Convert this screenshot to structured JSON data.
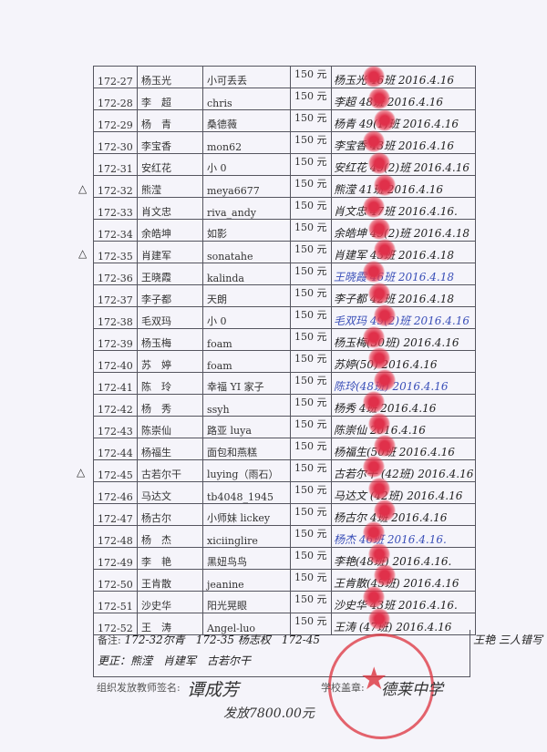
{
  "amount_label": "150 元",
  "rows": [
    {
      "id": "172-27",
      "name": "杨玉光",
      "nick": "小可丢丢",
      "sign": "杨玉光 46班 2016.4.16",
      "blue": false
    },
    {
      "id": "172-28",
      "name": "李　超",
      "nick": "chris",
      "sign": "李超 48班 2016.4.16",
      "blue": false
    },
    {
      "id": "172-29",
      "name": "杨　青",
      "nick": "桑德薇",
      "sign": "杨青 49(1)班 2016.4.16",
      "blue": false
    },
    {
      "id": "172-30",
      "name": "李宝香",
      "nick": "mon62",
      "sign": "李宝香 43班 2016.4.16",
      "blue": false
    },
    {
      "id": "172-31",
      "name": "安红花",
      "nick": "小 0",
      "sign": "安红花 49(2)班 2016.4.16",
      "blue": false
    },
    {
      "id": "172-32",
      "name": "熊滢",
      "nick": "meya6677",
      "sign": "熊滢 41班 2016.4.16",
      "blue": false
    },
    {
      "id": "172-33",
      "name": "肖文忠",
      "nick": "riva_andy",
      "sign": "肖文忠 47班 2016.4.16.",
      "blue": false
    },
    {
      "id": "172-34",
      "name": "余皓坤",
      "nick": "如影",
      "sign": "余皓坤 49(2)班 2016.4.18",
      "blue": false
    },
    {
      "id": "172-35",
      "name": "肖建军",
      "nick": "sonatahe",
      "sign": "肖建军 43班 2016.4.18",
      "blue": false
    },
    {
      "id": "172-36",
      "name": "王晓霞",
      "nick": "kalinda",
      "sign": "王晓霞 46班 2016.4.18",
      "blue": true
    },
    {
      "id": "172-37",
      "name": "李子都",
      "nick": "天朗",
      "sign": "李子都 42班 2016.4.18",
      "blue": false
    },
    {
      "id": "172-38",
      "name": "毛双玛",
      "nick": "小 0",
      "sign": "毛双玛 49(2)班 2016.4.16",
      "blue": true
    },
    {
      "id": "172-39",
      "name": "杨玉梅",
      "nick": "foam",
      "sign": "杨玉梅(50班) 2016.4.16",
      "blue": false
    },
    {
      "id": "172-40",
      "name": "苏　婷",
      "nick": "foam",
      "sign": "苏婷(50) 2016.4.16",
      "blue": false
    },
    {
      "id": "172-41",
      "name": "陈　玲",
      "nick": "幸福 YI 家子",
      "sign": "陈玲(48班) 2016.4.16",
      "blue": true
    },
    {
      "id": "172-42",
      "name": "杨　秀",
      "nick": "ssyh",
      "sign": "杨秀 4班 2016.4.16",
      "blue": false
    },
    {
      "id": "172-43",
      "name": "陈崇仙",
      "nick": "路亚 luya",
      "sign": "陈崇仙 2016.4.16",
      "blue": false
    },
    {
      "id": "172-44",
      "name": "杨福生",
      "nick": "面包和燕糕",
      "sign": "杨福生(50班 2016.4.16",
      "blue": false
    },
    {
      "id": "172-45",
      "name": "古若尔干",
      "nick": "luying（雨石）",
      "sign": "古若尔干 (42班) 2016.4.16",
      "blue": false
    },
    {
      "id": "172-46",
      "name": "马达文",
      "nick": "tb4048_1945",
      "sign": "马达文 (42班) 2016.4.16",
      "blue": false
    },
    {
      "id": "172-47",
      "name": "杨古尔",
      "nick": "小师妹 lickey",
      "sign": "杨古尔 4班 2016.4.16",
      "blue": false
    },
    {
      "id": "172-48",
      "name": "杨　杰",
      "nick": "xiciinglire",
      "sign": "杨杰 46班 2016.4.16.",
      "blue": true
    },
    {
      "id": "172-49",
      "name": "李　艳",
      "nick": "黑妞鸟鸟",
      "sign": "李艳(48班) 2016.4.16.",
      "blue": false
    },
    {
      "id": "172-50",
      "name": "王肯散",
      "nick": "jeanine",
      "sign": "王肯散(45班) 2016.4.16",
      "blue": false
    },
    {
      "id": "172-51",
      "name": "沙史华",
      "nick": "阳光晃眼",
      "sign": "沙史华 43班 2016.4.16.",
      "blue": false
    },
    {
      "id": "172-52",
      "name": "王　涛",
      "nick": "Angel-luo",
      "sign": "王涛 (47班) 2016.4.16",
      "blue": false
    }
  ],
  "remarks": {
    "label": "备注:",
    "line1": "172-32尔青　172-35 杨志权　172-45",
    "line1_right": "王艳 三人错写",
    "line2": "更正：熊滢　肖建军　古若尔干"
  },
  "footer": {
    "teacher_label": "组织发放教师签名:",
    "teacher_sign": "谭成芳",
    "total": "发放7800.00元",
    "stamp_label": "学校盖章:",
    "school": "德莱中学"
  },
  "margin_marks": [
    "△",
    "△",
    "△"
  ]
}
